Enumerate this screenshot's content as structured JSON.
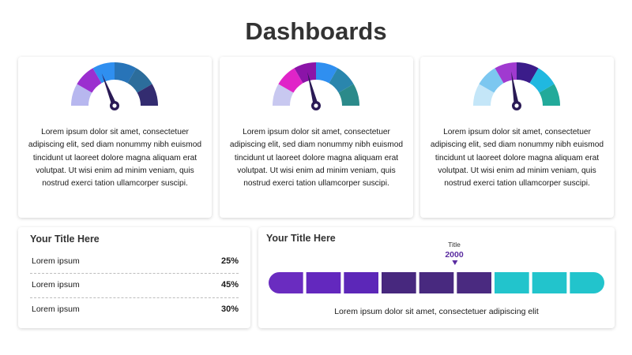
{
  "title": "Dashboards",
  "gauges": [
    {
      "segments": [
        "#b7b7ef",
        "#9b2fcf",
        "#2f8ff0",
        "#2874b8",
        "#2c6d9b",
        "#332c70"
      ],
      "needle_value": 0.38,
      "text": "Lorem ipsum dolor sit amet, consectetuer adipiscing elit, sed diam nonummy nibh euismod tincidunt ut laoreet dolore magna aliquam erat volutpat. Ut wisi enim ad minim veniam, quis nostrud exerci tation ullamcorper suscipi."
    },
    {
      "segments": [
        "#c8c8f0",
        "#e024c8",
        "#8b14a8",
        "#2f8ff0",
        "#2a86ad",
        "#2b8a8a"
      ],
      "needle_value": 0.42,
      "text": "Lorem ipsum dolor sit amet, consectetuer adipiscing elit, sed diam nonummy nibh euismod tincidunt ut laoreet dolore magna aliquam erat volutpat. Ut wisi enim ad minim veniam, quis nostrud exerci tation ullamcorper suscipi."
    },
    {
      "segments": [
        "#c4e6f8",
        "#7cc7f0",
        "#a03ad0",
        "#3b1c8a",
        "#20b8e0",
        "#22aa9a"
      ],
      "needle_value": 0.45,
      "text": "Lorem ipsum dolor sit amet, consectetuer adipiscing elit, sed diam nonummy nibh euismod tincidunt ut laoreet dolore magna aliquam erat volutpat. Ut wisi enim ad minim veniam, quis nostrud exerci tation ullamcorper suscipi."
    }
  ],
  "needle_color": "#2a1a55",
  "stats_card": {
    "title": "Your Title Here",
    "rows": [
      {
        "label": "Lorem ipsum",
        "value": "25%",
        "color": "#2b87d8"
      },
      {
        "label": "Lorem ipsum",
        "value": "45%",
        "color": "#2b9ad8"
      },
      {
        "label": "Lorem ipsum",
        "value": "30%",
        "color": "#5a2ca0"
      }
    ]
  },
  "timeline_card": {
    "title": "Your Title Here",
    "marker_label": "Title",
    "marker_value": "2000",
    "marker_position": 0.555,
    "segments": [
      "#6a2cc0",
      "#6328be",
      "#5c27b8",
      "#47287e",
      "#48297f",
      "#4a2a80",
      "#22c4cc",
      "#22c4cc",
      "#22c4cc"
    ],
    "caption": "Lorem ipsum dolor sit amet, consectetuer adipiscing elit"
  }
}
